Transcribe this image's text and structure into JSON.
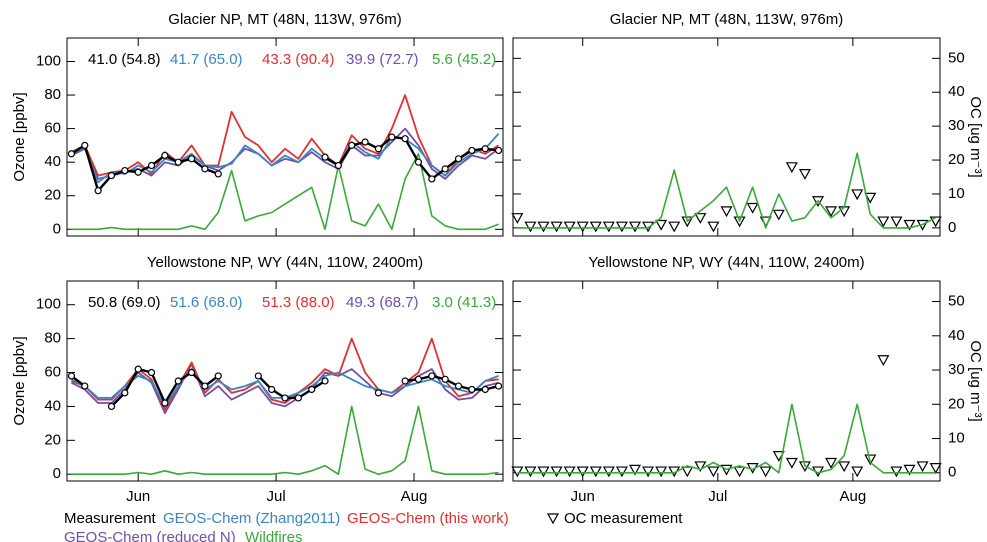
{
  "chart_data": [
    {
      "type": "line",
      "title": "Glacier NP, MT (48N, 113W, 976m)",
      "ylabel": "Ozone [ppbv]",
      "x": [
        151,
        154,
        157,
        160,
        163,
        166,
        169,
        172,
        175,
        178,
        181,
        184,
        187,
        190,
        193,
        196,
        199,
        202,
        205,
        208,
        211,
        214,
        217,
        220,
        223,
        226,
        229,
        232,
        235,
        238,
        241,
        244,
        247
      ],
      "xlim": [
        150,
        248
      ],
      "xticks": [
        166,
        197,
        228
      ],
      "ylim": [
        -4,
        114
      ],
      "yticks": [
        0,
        20,
        40,
        60,
        80,
        100
      ],
      "yaxis_side": "left",
      "series": [
        {
          "name": "Measurement",
          "color": "#000000",
          "linewidth": 2.4,
          "marker": "circle",
          "annotation": "41.0 (54.8)",
          "values": [
            45,
            50,
            23,
            32,
            35,
            34,
            38,
            44,
            40,
            42,
            36,
            33,
            null,
            null,
            null,
            null,
            null,
            null,
            null,
            43,
            38,
            50,
            52,
            48,
            55,
            54,
            40,
            30,
            36,
            42,
            47,
            48,
            47
          ]
        },
        {
          "name": "GEOS-Chem (Zhang2011)",
          "color": "#3a87c0",
          "linewidth": 1.8,
          "annotation": "41.7 (65.0)",
          "values": [
            46,
            49,
            28,
            34,
            33,
            38,
            34,
            42,
            40,
            45,
            38,
            37,
            39,
            50,
            45,
            38,
            44,
            40,
            48,
            42,
            38,
            52,
            46,
            42,
            55,
            54,
            48,
            38,
            32,
            40,
            45,
            48,
            57
          ]
        },
        {
          "name": "GEOS-Chem (this work)",
          "color": "#e03030",
          "linewidth": 1.8,
          "annotation": "43.3 (90.4)",
          "values": [
            46,
            50,
            32,
            34,
            35,
            40,
            33,
            46,
            40,
            50,
            38,
            38,
            70,
            55,
            50,
            40,
            48,
            42,
            54,
            44,
            38,
            56,
            48,
            45,
            60,
            80,
            55,
            38,
            32,
            42,
            48,
            45,
            50
          ]
        },
        {
          "name": "GEOS-Chem (reduced N)",
          "color": "#7050a8",
          "linewidth": 1.8,
          "annotation": "39.9 (72.7)",
          "values": [
            44,
            48,
            30,
            32,
            34,
            36,
            32,
            40,
            38,
            44,
            38,
            35,
            40,
            48,
            45,
            38,
            42,
            40,
            46,
            40,
            36,
            50,
            44,
            44,
            52,
            60,
            50,
            36,
            30,
            38,
            44,
            42,
            48
          ]
        },
        {
          "name": "Wildfires",
          "color": "#3aa83a",
          "linewidth": 1.6,
          "annotation": "5.6 (45.2)",
          "values": [
            0,
            0,
            0,
            1,
            0,
            0,
            0,
            0,
            0,
            2,
            0,
            10,
            35,
            5,
            8,
            10,
            15,
            20,
            25,
            0,
            38,
            5,
            2,
            15,
            0,
            30,
            45,
            8,
            2,
            0,
            0,
            0,
            3
          ]
        }
      ]
    },
    {
      "type": "line",
      "title": "Glacier NP, MT (48N, 113W, 976m)",
      "ylabel": "OC [ug m⁻³]",
      "x": [
        151,
        154,
        157,
        160,
        163,
        166,
        169,
        172,
        175,
        178,
        181,
        184,
        187,
        190,
        193,
        196,
        199,
        202,
        205,
        208,
        211,
        214,
        217,
        220,
        223,
        226,
        229,
        232,
        235,
        238,
        241,
        244,
        247
      ],
      "xlim": [
        150,
        248
      ],
      "xticks": [
        166,
        197,
        228
      ],
      "ylim": [
        -2.4,
        56
      ],
      "yticks": [
        0,
        10,
        20,
        30,
        40,
        50
      ],
      "yaxis_side": "right",
      "series": [
        {
          "color": "#3aa83a",
          "linewidth": 1.6,
          "values": [
            0,
            0,
            0,
            0,
            0,
            0,
            0,
            0,
            0,
            0,
            0,
            3,
            17,
            2,
            5,
            8,
            12,
            2,
            12,
            0,
            10,
            2,
            3,
            8,
            3,
            6,
            22,
            4,
            0,
            0,
            0,
            1,
            3
          ]
        },
        {
          "name": "OC measurement",
          "color": "#000000",
          "linewidth": 0,
          "marker": "triangle-down",
          "values": [
            3,
            0.5,
            0.5,
            0.5,
            0.5,
            0.5,
            0.5,
            0.5,
            0.5,
            0.5,
            0.5,
            1,
            0.5,
            2,
            3,
            0.5,
            5,
            2,
            6,
            2,
            4,
            18,
            16,
            8,
            5,
            5,
            10,
            9,
            2,
            2,
            1,
            1,
            2
          ]
        }
      ]
    },
    {
      "type": "line",
      "title": "Yellowstone NP, WY (44N, 110W, 2400m)",
      "ylabel": "Ozone [ppbv]",
      "x": [
        151,
        154,
        157,
        160,
        163,
        166,
        169,
        172,
        175,
        178,
        181,
        184,
        187,
        190,
        193,
        196,
        199,
        202,
        205,
        208,
        211,
        214,
        217,
        220,
        223,
        226,
        229,
        232,
        235,
        238,
        241,
        244,
        247
      ],
      "xlim": [
        150,
        248
      ],
      "xticks": [
        {
          "value": 166,
          "label": "Jun"
        },
        {
          "value": 197,
          "label": "Jul"
        },
        {
          "value": 228,
          "label": "Aug"
        }
      ],
      "ylim": [
        -4,
        114
      ],
      "yticks": [
        0,
        20,
        40,
        60,
        80,
        100
      ],
      "yaxis_side": "left",
      "series": [
        {
          "color": "#000000",
          "linewidth": 2.4,
          "marker": "circle",
          "annotation": "50.8 (69.0)",
          "values": [
            58,
            52,
            null,
            40,
            48,
            62,
            60,
            42,
            55,
            60,
            52,
            58,
            null,
            null,
            58,
            50,
            45,
            45,
            50,
            55,
            null,
            null,
            null,
            48,
            null,
            55,
            56,
            58,
            56,
            52,
            50,
            50,
            52
          ]
        },
        {
          "color": "#3a87c0",
          "linewidth": 1.8,
          "annotation": "51.6 (68.0)",
          "values": [
            56,
            52,
            45,
            45,
            52,
            58,
            55,
            40,
            52,
            62,
            50,
            55,
            50,
            52,
            55,
            45,
            45,
            48,
            52,
            58,
            60,
            56,
            52,
            50,
            48,
            52,
            54,
            56,
            52,
            50,
            48,
            55,
            58
          ]
        },
        {
          "color": "#e03030",
          "linewidth": 1.8,
          "annotation": "51.3 (88.0)",
          "values": [
            55,
            52,
            44,
            44,
            52,
            62,
            56,
            38,
            52,
            66,
            48,
            56,
            48,
            50,
            55,
            44,
            42,
            48,
            54,
            62,
            58,
            80,
            60,
            50,
            48,
            54,
            60,
            80,
            55,
            46,
            48,
            55,
            56
          ]
        },
        {
          "color": "#7050a8",
          "linewidth": 1.8,
          "annotation": "49.3 (68.7)",
          "values": [
            54,
            50,
            42,
            42,
            50,
            60,
            54,
            36,
            50,
            65,
            46,
            52,
            44,
            48,
            52,
            42,
            40,
            45,
            50,
            60,
            58,
            62,
            55,
            48,
            46,
            52,
            58,
            62,
            50,
            44,
            45,
            52,
            54
          ]
        },
        {
          "color": "#3aa83a",
          "linewidth": 1.6,
          "annotation": "3.0 (41.3)",
          "values": [
            0,
            0,
            0,
            0,
            0,
            1,
            0,
            2,
            0,
            1,
            0,
            0,
            0,
            0,
            0,
            0,
            1,
            0,
            2,
            5,
            0,
            40,
            3,
            0,
            2,
            8,
            40,
            2,
            0,
            0,
            0,
            0,
            1
          ]
        }
      ]
    },
    {
      "type": "line",
      "title": "Yellowstone NP, WY (44N, 110W, 2400m)",
      "ylabel": "OC [ug m⁻³]",
      "x": [
        151,
        154,
        157,
        160,
        163,
        166,
        169,
        172,
        175,
        178,
        181,
        184,
        187,
        190,
        193,
        196,
        199,
        202,
        205,
        208,
        211,
        214,
        217,
        220,
        223,
        226,
        229,
        232,
        235,
        238,
        241,
        244,
        247
      ],
      "xlim": [
        150,
        248
      ],
      "xticks": [
        {
          "value": 166,
          "label": "Jun"
        },
        {
          "value": 197,
          "label": "Jul"
        },
        {
          "value": 228,
          "label": "Aug"
        }
      ],
      "ylim": [
        -2.4,
        56
      ],
      "yticks": [
        0,
        10,
        20,
        30,
        40,
        50
      ],
      "yaxis_side": "right",
      "series": [
        {
          "color": "#3aa83a",
          "linewidth": 1.6,
          "values": [
            0,
            0,
            0,
            0,
            0,
            0,
            0,
            0,
            0,
            0,
            0,
            0,
            0,
            2,
            1,
            3,
            1,
            2,
            1,
            3,
            0,
            20,
            2,
            0,
            1,
            5,
            20,
            3,
            0,
            0,
            0,
            0,
            0
          ]
        },
        {
          "color": "#000000",
          "linewidth": 0,
          "marker": "triangle-down",
          "values": [
            0.5,
            0.5,
            0.5,
            0.5,
            0.5,
            0.5,
            0.5,
            0.5,
            0.5,
            1,
            0.5,
            0.5,
            0.5,
            0.5,
            2,
            0.5,
            1,
            0.5,
            1.5,
            0.5,
            5,
            3,
            2,
            0.5,
            3,
            2,
            0.5,
            4,
            33,
            0.5,
            1,
            2,
            1.5
          ]
        }
      ]
    }
  ]
}
